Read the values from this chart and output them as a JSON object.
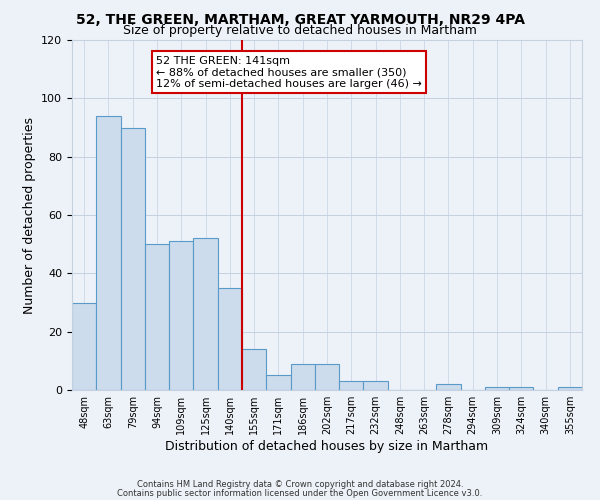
{
  "title1": "52, THE GREEN, MARTHAM, GREAT YARMOUTH, NR29 4PA",
  "title2": "Size of property relative to detached houses in Martham",
  "xlabel": "Distribution of detached houses by size in Martham",
  "ylabel": "Number of detached properties",
  "bar_labels": [
    "48sqm",
    "63sqm",
    "79sqm",
    "94sqm",
    "109sqm",
    "125sqm",
    "140sqm",
    "155sqm",
    "171sqm",
    "186sqm",
    "202sqm",
    "217sqm",
    "232sqm",
    "248sqm",
    "263sqm",
    "278sqm",
    "294sqm",
    "309sqm",
    "324sqm",
    "340sqm",
    "355sqm"
  ],
  "bar_values": [
    30,
    94,
    90,
    50,
    51,
    52,
    35,
    14,
    5,
    9,
    9,
    3,
    3,
    0,
    0,
    2,
    0,
    1,
    1,
    0,
    1
  ],
  "bar_color": "#ccdcec",
  "bar_edge_color": "#5a9ac8",
  "vline_color": "#cc0000",
  "annotation_line1": "52 THE GREEN: 141sqm",
  "annotation_line2": "← 88% of detached houses are smaller (350)",
  "annotation_line3": "12% of semi-detached houses are larger (46) →",
  "annotation_box_facecolor": "#ffffff",
  "annotation_box_edgecolor": "#cc0000",
  "ylim": [
    0,
    120
  ],
  "yticks": [
    0,
    20,
    40,
    60,
    80,
    100,
    120
  ],
  "footer1": "Contains HM Land Registry data © Crown copyright and database right 2024.",
  "footer2": "Contains public sector information licensed under the Open Government Licence v3.0.",
  "bg_color": "#edf2f8",
  "plot_bg_color": "#edf2f8",
  "grid_color": "#c5d0e0",
  "title1_fontsize": 10,
  "title2_fontsize": 9
}
